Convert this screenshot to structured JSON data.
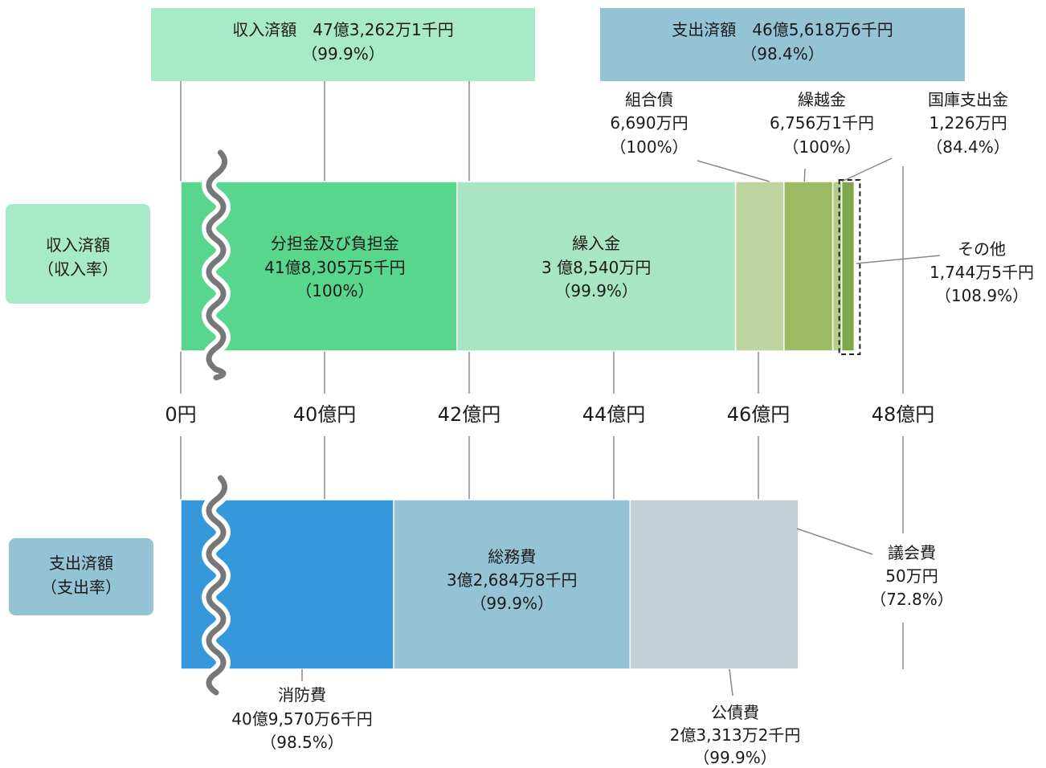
{
  "chart_data": {
    "type": "bar",
    "axis_tick_labels": [
      "0円",
      "40億円",
      "42億円",
      "44億円",
      "46億円",
      "48億円"
    ],
    "axis_break": "0円〜40億円 (wavy break)",
    "income": {
      "row_label": [
        "収入済額",
        "（収入率）"
      ],
      "total_label": [
        "収入済額　47億3,262万1千円",
        "（99.9%）"
      ],
      "total_yen": 4732621000,
      "total_rate": 99.9,
      "segments": [
        {
          "name": "分担金及び負担金",
          "amount_text": "41億8,305万5千円",
          "rate_text": "（100%）",
          "value_yen": 4183055000,
          "rate": 100,
          "color": "#58d68d"
        },
        {
          "name": "繰入金",
          "amount_text": "3 億8,540万円",
          "rate_text": "（99.9%）",
          "value_yen": 385400000,
          "rate": 99.9,
          "color": "#a8e6c3"
        },
        {
          "name": "組合債",
          "amount_text": "6,690万円",
          "rate_text": "（100%）",
          "value_yen": 66900000,
          "rate": 100,
          "color": "#bdd49f"
        },
        {
          "name": "繰越金",
          "amount_text": "6,756万1千円",
          "rate_text": "（100%）",
          "value_yen": 67561000,
          "rate": 100,
          "color": "#9cbb63"
        },
        {
          "name": "国庫支出金",
          "amount_text": "1,226万円",
          "rate_text": "（84.4%）",
          "value_yen": 12260000,
          "rate": 84.4,
          "color": "#b5cf85"
        },
        {
          "name": "その他",
          "amount_text": "1,744万5千円",
          "rate_text": "（108.9%）",
          "value_yen": 17445000,
          "rate": 108.9,
          "color": "#7ea84a"
        }
      ]
    },
    "expenditure": {
      "row_label": [
        "支出済額",
        "（支出率）"
      ],
      "total_label": [
        "支出済額　46億5,618万6千円",
        "（98.4%）"
      ],
      "total_yen": 4656186000,
      "total_rate": 98.4,
      "segments": [
        {
          "name": "消防費",
          "amount_text": "40億9,570万6千円",
          "rate_text": "（98.5%）",
          "value_yen": 4095706000,
          "rate": 98.5,
          "color": "#3498db"
        },
        {
          "name": "総務費",
          "amount_text": "3億2,684万8千円",
          "rate_text": "（99.9%）",
          "value_yen": 326848000,
          "rate": 99.9,
          "color": "#93c3d5"
        },
        {
          "name": "公債費",
          "amount_text": "2億3,313万2千円",
          "rate_text": "（99.9%）",
          "value_yen": 233132000,
          "rate": 99.9,
          "color": "#c3d0d6"
        },
        {
          "name": "議会費",
          "amount_text": "50万円",
          "rate_text": "（72.8%）",
          "value_yen": 500000,
          "rate": 72.8,
          "color": "#1f4e79"
        }
      ]
    },
    "colors": {
      "income_box": "#a8e9c7",
      "expenditure_box": "#93c3d5",
      "gridline": "#8a8a8a",
      "break_line": "#777777"
    }
  }
}
